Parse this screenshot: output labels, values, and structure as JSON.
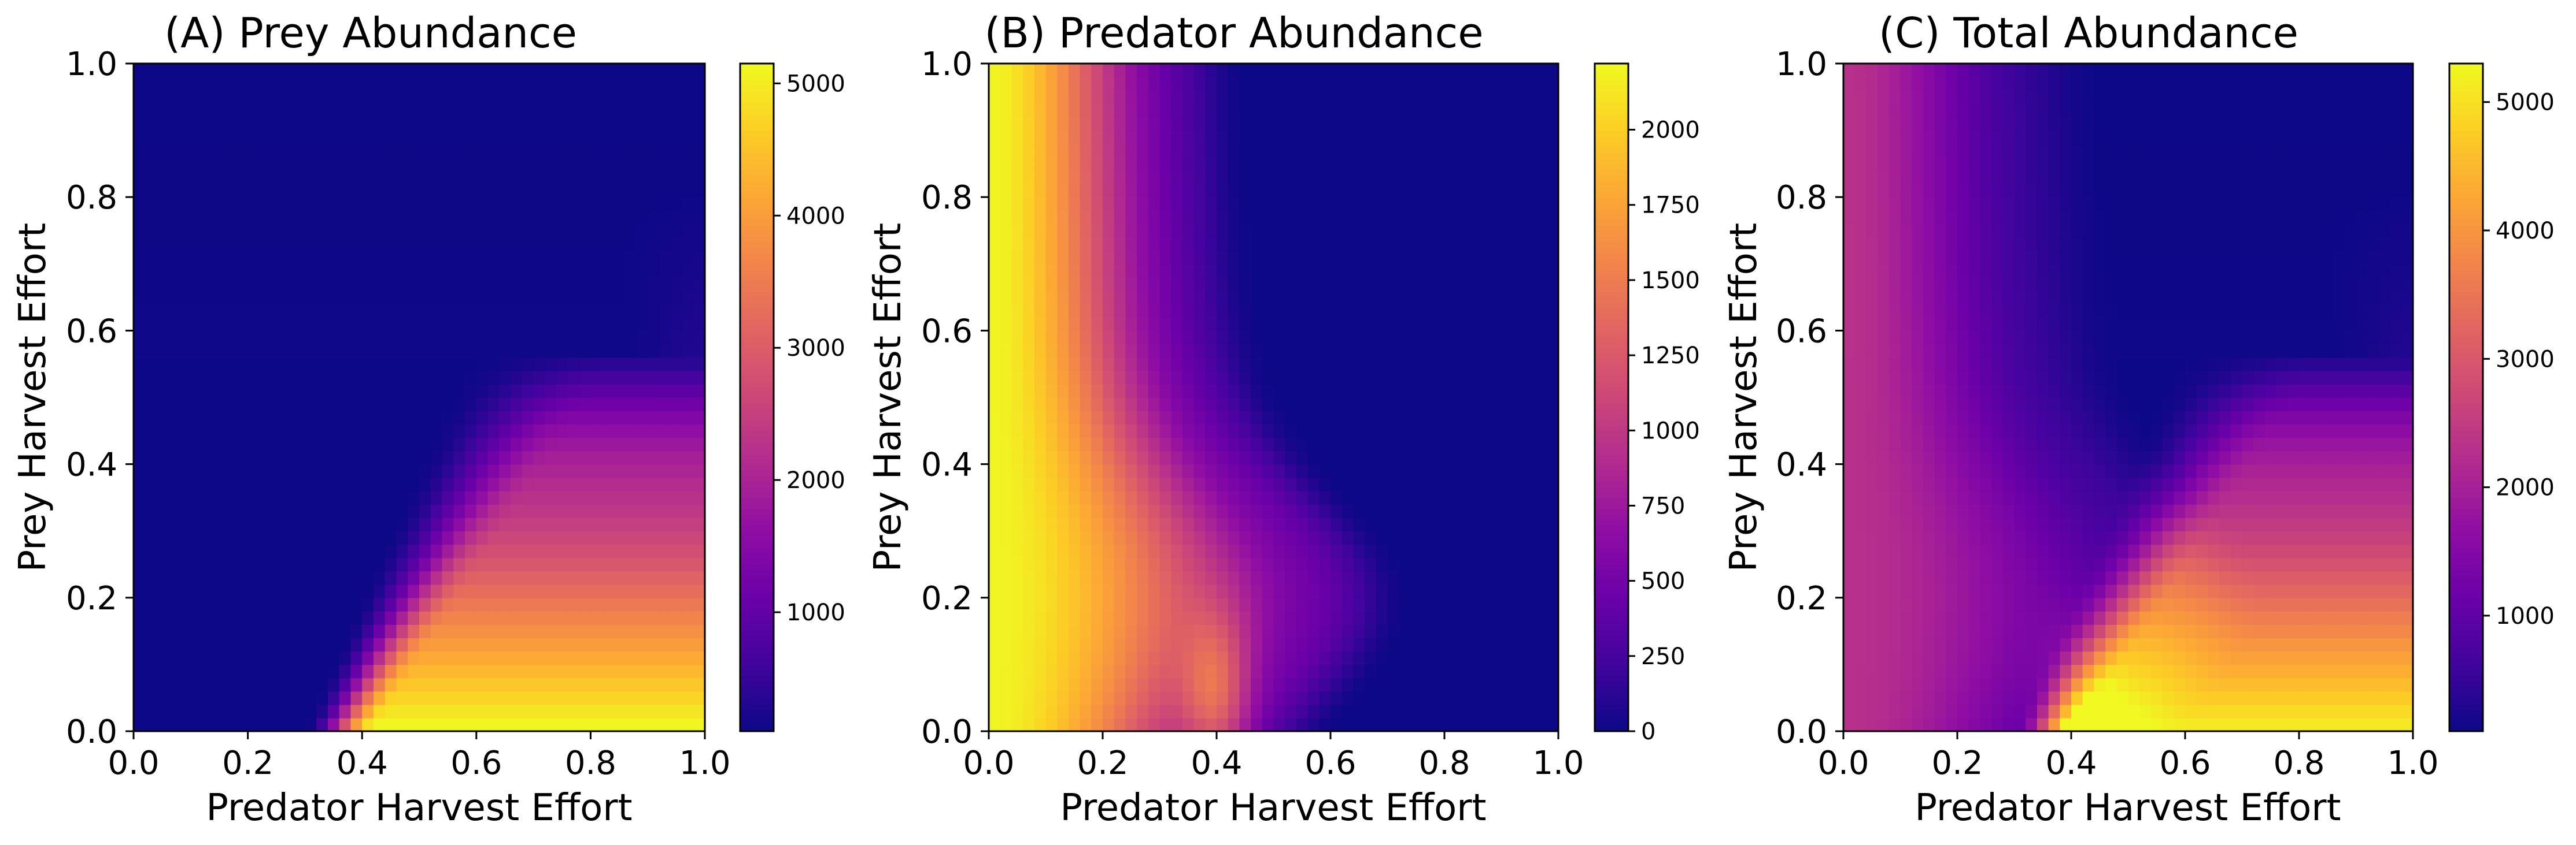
{
  "chart_data": [
    {
      "type": "heatmap",
      "title": "(A) Prey Abundance",
      "xlabel": "Predator Harvest Effort",
      "ylabel": "Prey Harvest Effort",
      "xlim": [
        0.0,
        1.0
      ],
      "ylim": [
        0.0,
        1.0
      ],
      "x_ticks": [
        "0.0",
        "0.2",
        "0.4",
        "0.6",
        "0.8",
        "1.0"
      ],
      "y_ticks": [
        "0.0",
        "0.2",
        "0.4",
        "0.6",
        "0.8",
        "1.0"
      ],
      "colormap": "plasma",
      "grid_resolution": 50,
      "value_range": [
        100,
        5150
      ],
      "colorbar_ticks": [
        1000,
        2000,
        3000,
        4000,
        5000
      ],
      "colorbar_tick_labels": [
        "1000",
        "2000",
        "3000",
        "4000",
        "5000"
      ],
      "pattern": "prey abundance high (up to ~5100) at high predator harvest (>0.35) and low prey harvest; low (~100) elsewhere"
    },
    {
      "type": "heatmap",
      "title": "(B) Predator Abundance",
      "xlabel": "Predator Harvest Effort",
      "ylabel": "Prey Harvest Effort",
      "xlim": [
        0.0,
        1.0
      ],
      "ylim": [
        0.0,
        1.0
      ],
      "x_ticks": [
        "0.0",
        "0.2",
        "0.4",
        "0.6",
        "0.8",
        "1.0"
      ],
      "y_ticks": [
        "0.0",
        "0.2",
        "0.4",
        "0.6",
        "0.8",
        "1.0"
      ],
      "colormap": "plasma",
      "grid_resolution": 50,
      "value_range": [
        0,
        2220
      ],
      "colorbar_ticks": [
        0,
        250,
        500,
        750,
        1000,
        1250,
        1500,
        1750,
        2000
      ],
      "colorbar_tick_labels": [
        "0",
        "250",
        "500",
        "750",
        "1000",
        "1250",
        "1500",
        "1750",
        "2000"
      ],
      "pattern": "predator abundance ~2200 at predator harvest 0, declining to 0 beyond ~0.3-0.65 depending on prey harvest; bump near predator harvest 0.4 at low prey harvest"
    },
    {
      "type": "heatmap",
      "title": "(C) Total Abundance",
      "xlabel": "Predator Harvest Effort",
      "ylabel": "Prey Harvest Effort",
      "xlim": [
        0.0,
        1.0
      ],
      "ylim": [
        0.0,
        1.0
      ],
      "x_ticks": [
        "0.0",
        "0.2",
        "0.4",
        "0.6",
        "0.8",
        "1.0"
      ],
      "y_ticks": [
        "0.0",
        "0.2",
        "0.4",
        "0.6",
        "0.8",
        "1.0"
      ],
      "colormap": "plasma",
      "grid_resolution": 50,
      "value_range": [
        100,
        5300
      ],
      "colorbar_ticks": [
        1000,
        2000,
        3000,
        4000,
        5000
      ],
      "colorbar_tick_labels": [
        "1000",
        "2000",
        "3000",
        "4000",
        "5000"
      ],
      "pattern": "total abundance ~2300 at predator harvest 0, low (~200) in upper right, high (~5200) at high predator harvest and low prey harvest"
    }
  ]
}
